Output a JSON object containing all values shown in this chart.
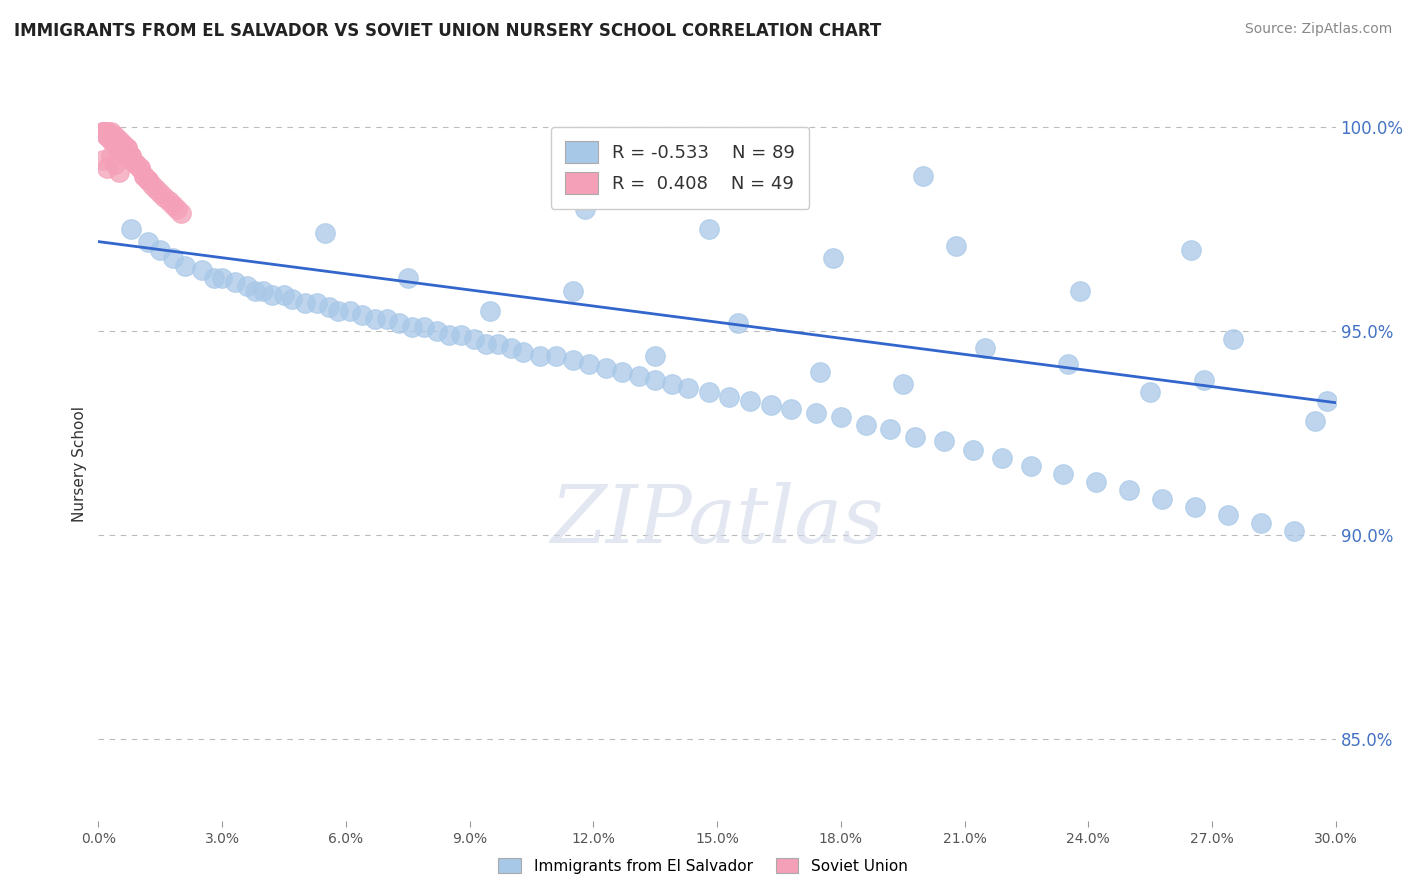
{
  "title": "IMMIGRANTS FROM EL SALVADOR VS SOVIET UNION NURSERY SCHOOL CORRELATION CHART",
  "source": "Source: ZipAtlas.com",
  "ylabel": "Nursery School",
  "legend_label_blue": "Immigrants from El Salvador",
  "legend_label_pink": "Soviet Union",
  "r_blue": -0.533,
  "n_blue": 89,
  "r_pink": 0.408,
  "n_pink": 49,
  "xmin": 0.0,
  "xmax": 0.3,
  "ymin": 0.83,
  "ymax": 1.005,
  "yticks": [
    0.85,
    0.9,
    0.95,
    1.0
  ],
  "ytick_labels": [
    "85.0%",
    "90.0%",
    "95.0%",
    "100.0%"
  ],
  "watermark_text": "ZIPatlas",
  "blue_scatter_color": "#a8c8e8",
  "blue_line_color": "#3366cc",
  "pink_scatter_color": "#f4a0b8",
  "title_color": "#222222",
  "grid_color": "#bbbbbb",
  "blue_scatter_x": [
    0.008,
    0.012,
    0.015,
    0.018,
    0.021,
    0.025,
    0.028,
    0.03,
    0.033,
    0.036,
    0.038,
    0.04,
    0.042,
    0.045,
    0.047,
    0.05,
    0.053,
    0.056,
    0.058,
    0.061,
    0.064,
    0.067,
    0.07,
    0.073,
    0.076,
    0.079,
    0.082,
    0.085,
    0.088,
    0.091,
    0.094,
    0.097,
    0.1,
    0.103,
    0.107,
    0.111,
    0.115,
    0.119,
    0.123,
    0.127,
    0.131,
    0.135,
    0.139,
    0.143,
    0.148,
    0.153,
    0.158,
    0.163,
    0.168,
    0.174,
    0.18,
    0.186,
    0.192,
    0.198,
    0.205,
    0.212,
    0.219,
    0.226,
    0.234,
    0.242,
    0.25,
    0.258,
    0.266,
    0.274,
    0.282,
    0.29,
    0.298,
    0.055,
    0.075,
    0.095,
    0.115,
    0.135,
    0.155,
    0.175,
    0.195,
    0.215,
    0.235,
    0.255,
    0.275,
    0.295,
    0.118,
    0.148,
    0.178,
    0.208,
    0.238,
    0.268,
    0.14,
    0.2,
    0.265
  ],
  "blue_scatter_y": [
    0.975,
    0.972,
    0.97,
    0.968,
    0.966,
    0.965,
    0.963,
    0.963,
    0.962,
    0.961,
    0.96,
    0.96,
    0.959,
    0.959,
    0.958,
    0.957,
    0.957,
    0.956,
    0.955,
    0.955,
    0.954,
    0.953,
    0.953,
    0.952,
    0.951,
    0.951,
    0.95,
    0.949,
    0.949,
    0.948,
    0.947,
    0.947,
    0.946,
    0.945,
    0.944,
    0.944,
    0.943,
    0.942,
    0.941,
    0.94,
    0.939,
    0.938,
    0.937,
    0.936,
    0.935,
    0.934,
    0.933,
    0.932,
    0.931,
    0.93,
    0.929,
    0.927,
    0.926,
    0.924,
    0.923,
    0.921,
    0.919,
    0.917,
    0.915,
    0.913,
    0.911,
    0.909,
    0.907,
    0.905,
    0.903,
    0.901,
    0.933,
    0.974,
    0.963,
    0.955,
    0.96,
    0.944,
    0.952,
    0.94,
    0.937,
    0.946,
    0.942,
    0.935,
    0.948,
    0.928,
    0.98,
    0.975,
    0.968,
    0.971,
    0.96,
    0.938,
    0.985,
    0.988,
    0.97
  ],
  "pink_scatter_x": [
    0.001,
    0.002,
    0.003,
    0.004,
    0.005,
    0.006,
    0.007,
    0.008,
    0.009,
    0.01,
    0.011,
    0.012,
    0.013,
    0.014,
    0.015,
    0.016,
    0.017,
    0.018,
    0.019,
    0.02,
    0.003,
    0.004,
    0.005,
    0.006,
    0.007,
    0.008,
    0.009,
    0.01,
    0.011,
    0.012,
    0.003,
    0.004,
    0.005,
    0.006,
    0.007,
    0.008,
    0.002,
    0.003,
    0.004,
    0.005,
    0.002,
    0.003,
    0.004,
    0.001,
    0.002,
    0.003,
    0.001,
    0.002,
    0.001
  ],
  "pink_scatter_y": [
    0.992,
    0.99,
    0.993,
    0.991,
    0.989,
    0.994,
    0.995,
    0.993,
    0.991,
    0.99,
    0.988,
    0.987,
    0.986,
    0.985,
    0.984,
    0.983,
    0.982,
    0.981,
    0.98,
    0.979,
    0.997,
    0.996,
    0.995,
    0.994,
    0.993,
    0.992,
    0.991,
    0.99,
    0.988,
    0.987,
    0.999,
    0.998,
    0.997,
    0.996,
    0.995,
    0.993,
    0.999,
    0.998,
    0.997,
    0.996,
    0.999,
    0.998,
    0.997,
    0.999,
    0.998,
    0.997,
    0.999,
    0.998,
    0.999
  ],
  "blue_trend_x0": 0.0,
  "blue_trend_y0": 0.972,
  "blue_trend_x1": 0.3,
  "blue_trend_y1": 0.9325
}
